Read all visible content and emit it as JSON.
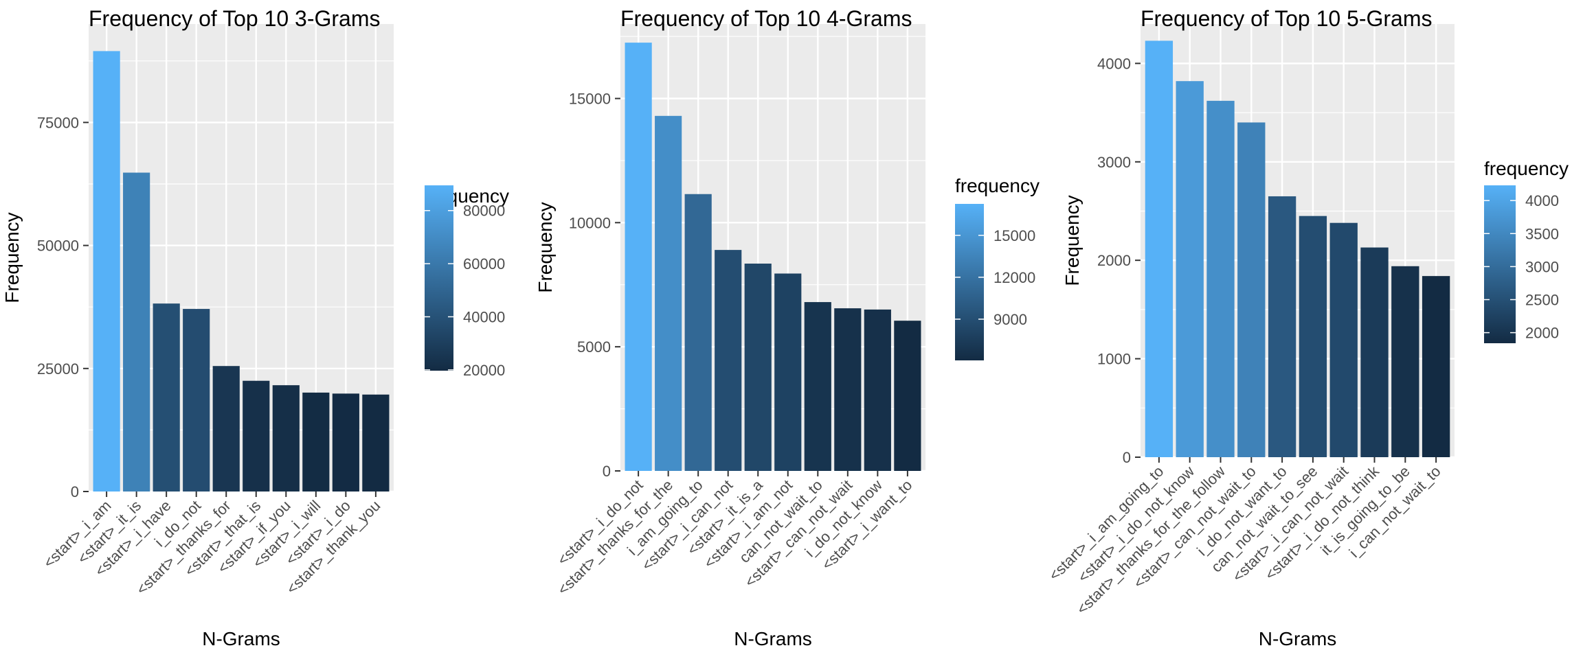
{
  "chart_data": [
    {
      "type": "bar",
      "title": "Frequency of Top 10 3-Grams",
      "xlabel": "N-Grams",
      "ylabel": "Frequency",
      "categories": [
        "<start>_i_am",
        "<start>_it_is",
        "<start>_i_have",
        "i_do_not",
        "<start>_thanks_for",
        "<start>_that_is",
        "<start>_if_you",
        "<start>_i_will",
        "<start>_i_do",
        "<start>_thank_you"
      ],
      "values": [
        89500,
        64800,
        38200,
        37100,
        25500,
        22500,
        21600,
        20100,
        19900,
        19700
      ],
      "ylim": [
        0,
        95000
      ],
      "yticks": [
        0,
        25000,
        50000,
        75000
      ],
      "grid": true,
      "legend": {
        "title": "frequency",
        "position": "right",
        "range": [
          19700,
          89500
        ],
        "ticks": [
          20000,
          40000,
          60000,
          80000
        ],
        "colors": [
          "#132B43",
          "#56B1F7"
        ]
      }
    },
    {
      "type": "bar",
      "title": "Frequency of Top 10 4-Grams",
      "xlabel": "N-Grams",
      "ylabel": "Frequency",
      "categories": [
        "<start>_i_do_not",
        "<start>_thanks_for_the",
        "i_am_going_to",
        "<start>_i_can_not",
        "<start>_it_is_a",
        "<start>_i_am_not",
        "can_not_wait_to",
        "<start>_can_not_wait",
        "i_do_not_know",
        "<start>_i_want_to"
      ],
      "values": [
        17250,
        14300,
        11150,
        8900,
        8350,
        7950,
        6800,
        6550,
        6500,
        6050
      ],
      "ylim": [
        0,
        18000
      ],
      "yticks": [
        0,
        5000,
        10000,
        15000
      ],
      "grid": true,
      "legend": {
        "title": "frequency",
        "position": "right",
        "range": [
          6050,
          17250
        ],
        "ticks": [
          9000,
          12000,
          15000
        ],
        "colors": [
          "#132B43",
          "#56B1F7"
        ]
      }
    },
    {
      "type": "bar",
      "title": "Frequency of Top 10 5-Grams",
      "xlabel": "N-Grams",
      "ylabel": "Frequency",
      "categories": [
        "<start>_i_am_going_to",
        "<start>_i_do_not_know",
        "<start>_thanks_for_the_follow",
        "<start>_can_not_wait_to",
        "i_do_not_want_to",
        "can_not_wait_to_see",
        "<start>_i_can_not_wait",
        "<start>_i_do_not_think",
        "it_is_going_to_be",
        "i_can_not_wait_to"
      ],
      "values": [
        4230,
        3820,
        3620,
        3400,
        2650,
        2450,
        2380,
        2130,
        1940,
        1840
      ],
      "ylim": [
        0,
        4400
      ],
      "yticks": [
        0,
        1000,
        2000,
        3000,
        4000
      ],
      "grid": true,
      "legend": {
        "title": "frequency",
        "position": "right",
        "range": [
          1840,
          4230
        ],
        "ticks": [
          2000,
          2500,
          3000,
          3500,
          4000
        ],
        "colors": [
          "#132B43",
          "#56B1F7"
        ]
      }
    }
  ]
}
